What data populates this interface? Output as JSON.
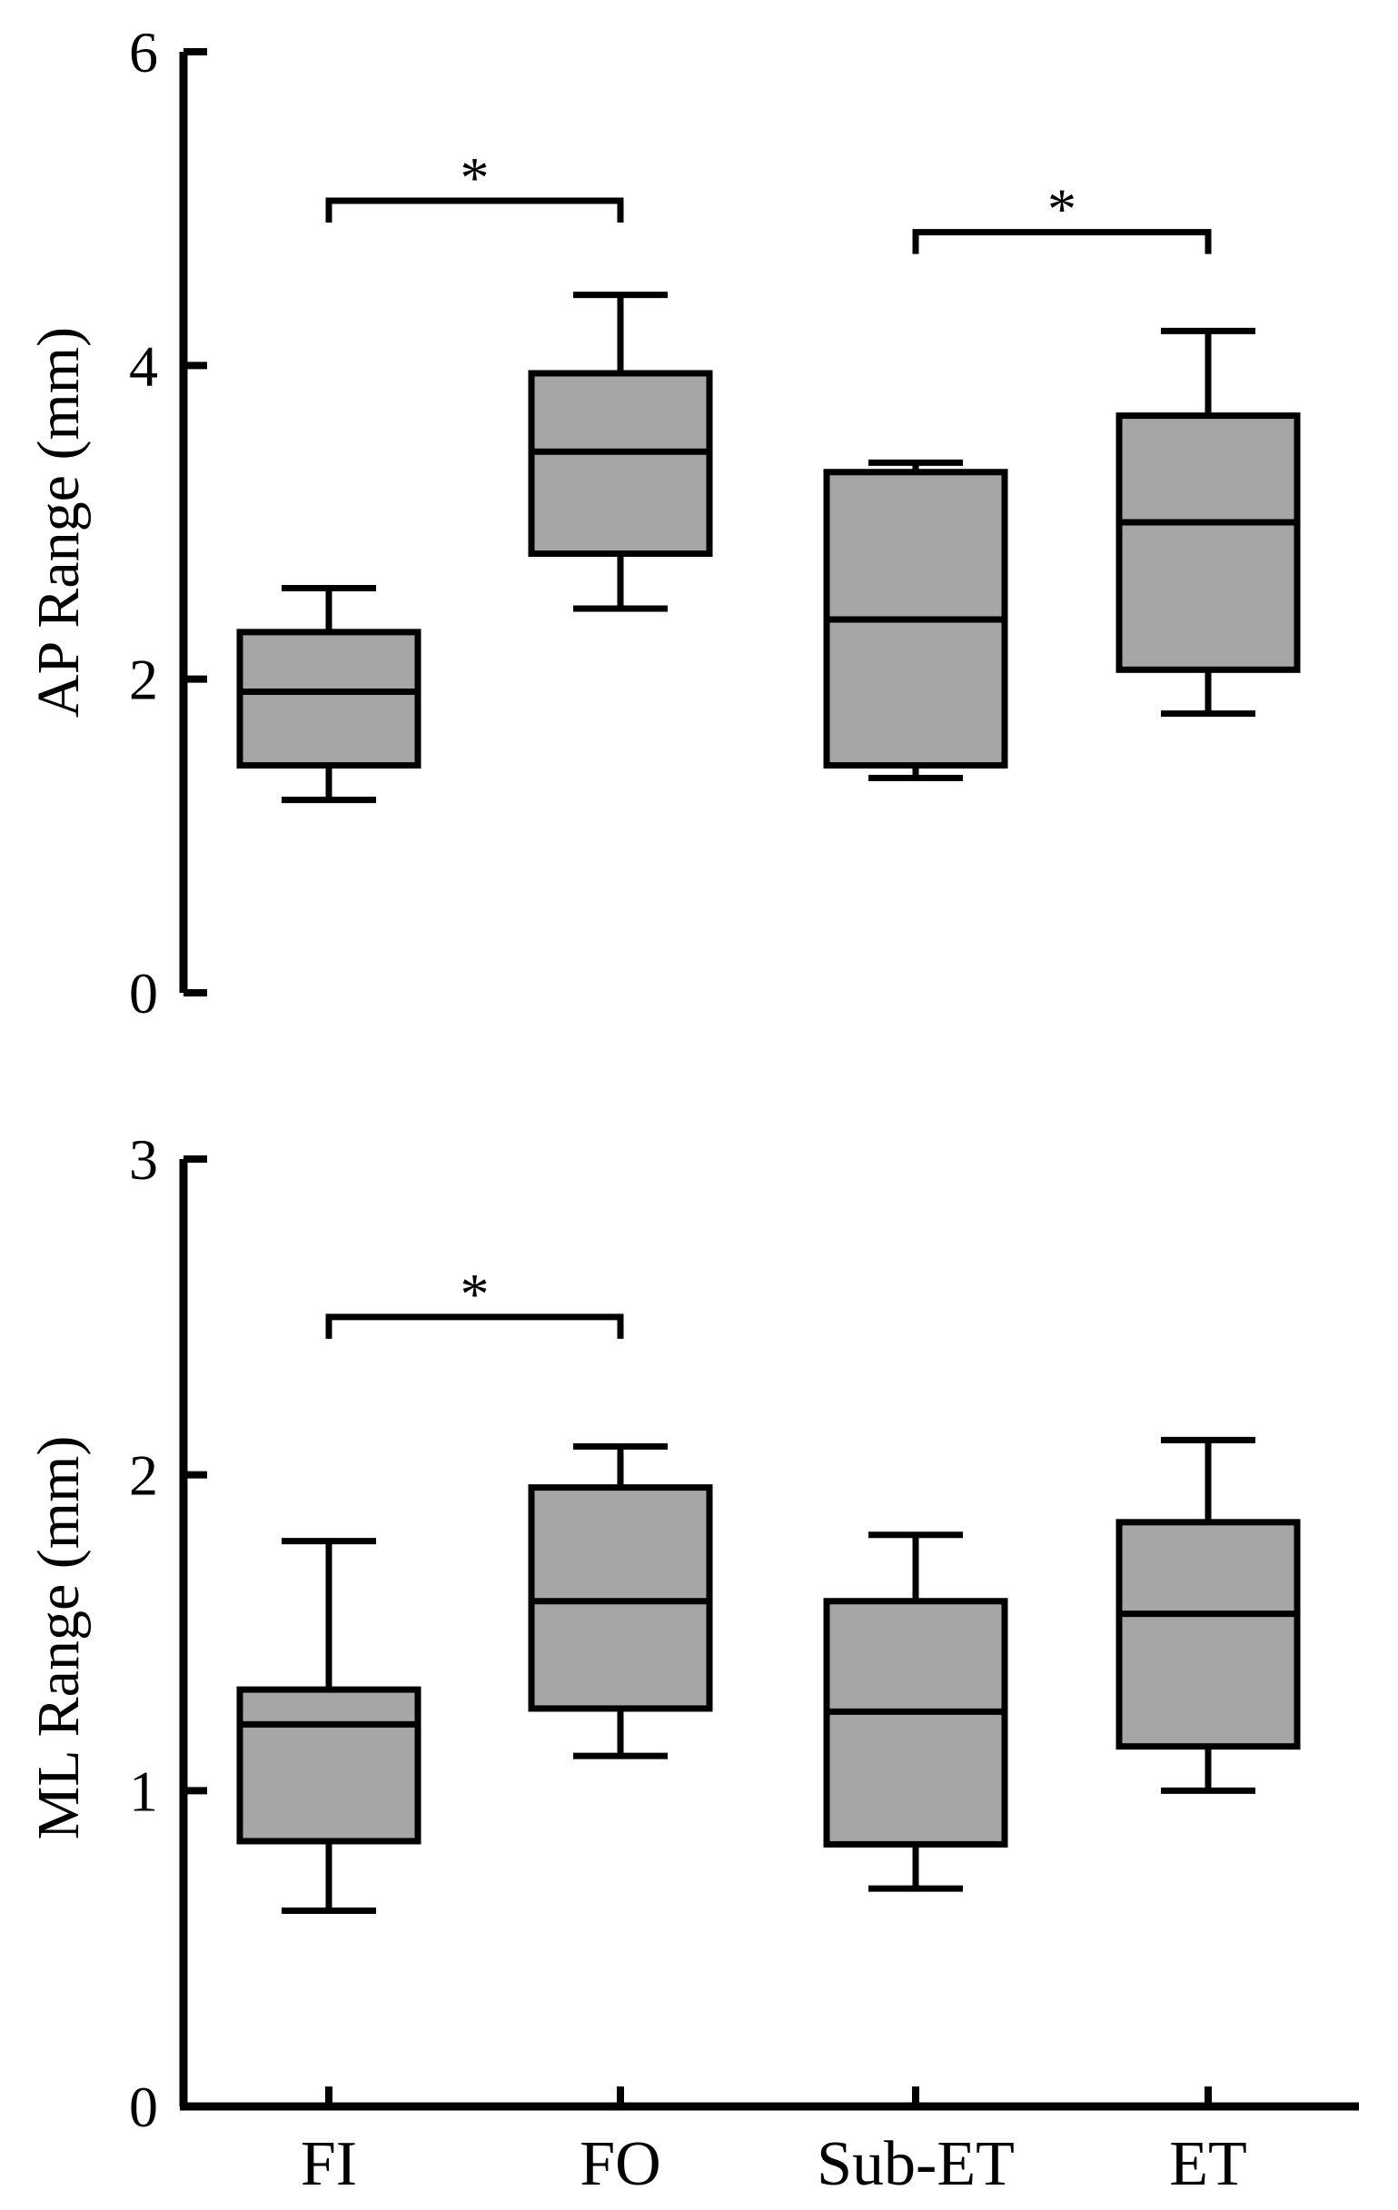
{
  "colors": {
    "box_fill": "#a6a6a6",
    "stroke": "#000000",
    "background": "#ffffff"
  },
  "chart_data": [
    {
      "type": "boxplot",
      "ylabel": "AP Range (mm)",
      "ylim": [
        0,
        6
      ],
      "yticks": [
        0,
        2,
        4,
        6
      ],
      "categories": [
        "FI",
        "FO",
        "Sub-ET",
        "ET"
      ],
      "show_category_labels": false,
      "boxes": [
        {
          "category": "FI",
          "min": 1.23,
          "q1": 1.45,
          "median": 1.92,
          "q3": 2.3,
          "max": 2.58
        },
        {
          "category": "FO",
          "min": 2.45,
          "q1": 2.8,
          "median": 3.45,
          "q3": 3.95,
          "max": 4.45
        },
        {
          "category": "Sub-ET",
          "min": 1.37,
          "q1": 1.45,
          "median": 2.38,
          "q3": 3.32,
          "max": 3.38
        },
        {
          "category": "ET",
          "min": 1.78,
          "q1": 2.06,
          "median": 3.0,
          "q3": 3.68,
          "max": 4.22
        }
      ],
      "significance": [
        {
          "from": "FI",
          "to": "FO",
          "y": 5.05,
          "label": "*"
        },
        {
          "from": "Sub-ET",
          "to": "ET",
          "y": 4.85,
          "label": "*"
        }
      ]
    },
    {
      "type": "boxplot",
      "ylabel": "ML Range (mm)",
      "ylim": [
        0,
        3
      ],
      "yticks": [
        0,
        1,
        2,
        3
      ],
      "categories": [
        "FI",
        "FO",
        "Sub-ET",
        "ET"
      ],
      "show_category_labels": true,
      "boxes": [
        {
          "category": "FI",
          "min": 0.62,
          "q1": 0.84,
          "median": 1.21,
          "q3": 1.32,
          "max": 1.79
        },
        {
          "category": "FO",
          "min": 1.11,
          "q1": 1.26,
          "median": 1.6,
          "q3": 1.96,
          "max": 2.09
        },
        {
          "category": "Sub-ET",
          "min": 0.69,
          "q1": 0.83,
          "median": 1.25,
          "q3": 1.6,
          "max": 1.81
        },
        {
          "category": "ET",
          "min": 1.0,
          "q1": 1.14,
          "median": 1.56,
          "q3": 1.85,
          "max": 2.11
        }
      ],
      "significance": [
        {
          "from": "FI",
          "to": "FO",
          "y": 2.5,
          "label": "*"
        }
      ]
    }
  ]
}
